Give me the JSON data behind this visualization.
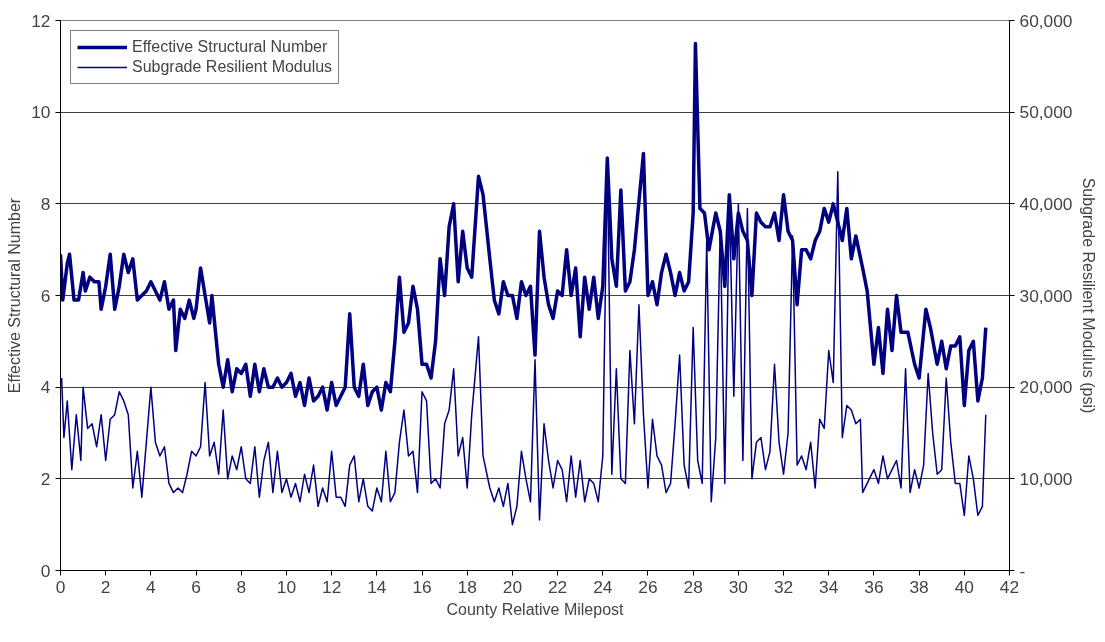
{
  "chart_data": {
    "type": "line",
    "xlabel": "County Relative Milepost",
    "ylabel": "Effective Structural Number",
    "y2label": "Subgrade Resilient Modulus (psi)",
    "xlim": [
      0,
      42
    ],
    "xticks": [
      0,
      2,
      4,
      6,
      8,
      10,
      12,
      14,
      16,
      18,
      20,
      22,
      24,
      26,
      28,
      30,
      32,
      34,
      36,
      38,
      40,
      42
    ],
    "ylim": [
      0,
      12
    ],
    "yticks": [
      0,
      2,
      4,
      6,
      8,
      10,
      12
    ],
    "y2lim": [
      0,
      60000
    ],
    "y2ticks": [
      {
        "value": 0,
        "label": "-"
      },
      {
        "value": 10000,
        "label": "10,000"
      },
      {
        "value": 20000,
        "label": "20,000"
      },
      {
        "value": 30000,
        "label": "30,000"
      },
      {
        "value": 40000,
        "label": "40,000"
      },
      {
        "value": 50000,
        "label": "50,000"
      },
      {
        "value": 60000,
        "label": "60,000"
      }
    ],
    "grid": "y",
    "legend": "top left",
    "line_style": "solid",
    "series": [
      {
        "name": "Effective Structural Number",
        "color": "#000080",
        "x": [
          0,
          0.1,
          0.3,
          0.4,
          0.6,
          0.8,
          1.0,
          1.1,
          1.3,
          1.5,
          1.7,
          1.8,
          2.0,
          2.2,
          2.4,
          2.6,
          2.8,
          3.0,
          3.2,
          3.4,
          3.6,
          3.8,
          4.0,
          4.2,
          4.4,
          4.6,
          4.8,
          5.0,
          5.1,
          5.3,
          5.5,
          5.7,
          5.9,
          6.0,
          6.2,
          6.4,
          6.6,
          6.7,
          7.0,
          7.2,
          7.4,
          7.6,
          7.8,
          8.0,
          8.2,
          8.4,
          8.6,
          8.8,
          9.0,
          9.2,
          9.4,
          9.6,
          9.8,
          10.0,
          10.2,
          10.4,
          10.6,
          10.8,
          11.0,
          11.2,
          11.4,
          11.6,
          11.8,
          12.0,
          12.2,
          12.4,
          12.6,
          12.8,
          13.0,
          13.2,
          13.4,
          13.6,
          13.8,
          14.0,
          14.2,
          14.4,
          14.6,
          14.8,
          15.0,
          15.2,
          15.4,
          15.6,
          15.8,
          16.0,
          16.2,
          16.4,
          16.6,
          16.8,
          17.0,
          17.2,
          17.4,
          17.6,
          17.8,
          18.0,
          18.2,
          18.5,
          18.7,
          19.0,
          19.2,
          19.4,
          19.6,
          19.8,
          20.0,
          20.2,
          20.4,
          20.6,
          20.8,
          21.0,
          21.2,
          21.4,
          21.6,
          21.8,
          22.0,
          22.2,
          22.4,
          22.6,
          22.8,
          23.0,
          23.2,
          23.4,
          23.6,
          23.8,
          24.0,
          24.2,
          24.4,
          24.6,
          24.8,
          25.0,
          25.2,
          25.4,
          25.8,
          26.0,
          26.2,
          26.4,
          26.6,
          26.8,
          27.0,
          27.2,
          27.4,
          27.6,
          27.8,
          28.0,
          28.1,
          28.3,
          28.5,
          28.7,
          29.0,
          29.2,
          29.4,
          29.6,
          29.8,
          30.0,
          30.2,
          30.4,
          30.6,
          30.8,
          31.0,
          31.2,
          31.4,
          31.6,
          31.8,
          32.0,
          32.2,
          32.4,
          32.6,
          32.8,
          33.0,
          33.2,
          33.4,
          33.6,
          33.8,
          34.0,
          34.2,
          34.4,
          34.6,
          34.8,
          35.0,
          35.2,
          35.5,
          35.7,
          36.0,
          36.2,
          36.4,
          36.6,
          36.8,
          37.0,
          37.2,
          37.5,
          37.8,
          38.0,
          38.3,
          38.5,
          38.8,
          39.0,
          39.2,
          39.4,
          39.6,
          39.8,
          40.0,
          40.2,
          40.4,
          40.6,
          40.8,
          40.95
        ],
        "values": [
          6.9,
          5.9,
          6.7,
          6.9,
          5.9,
          5.9,
          6.5,
          6.1,
          6.4,
          6.3,
          6.3,
          5.7,
          6.2,
          6.9,
          5.7,
          6.2,
          6.9,
          6.5,
          6.8,
          5.9,
          6.0,
          6.1,
          6.3,
          6.1,
          5.9,
          6.3,
          5.7,
          5.9,
          4.8,
          5.7,
          5.5,
          5.9,
          5.5,
          5.7,
          6.6,
          6.0,
          5.4,
          6.0,
          4.5,
          4.0,
          4.6,
          3.9,
          4.4,
          4.3,
          4.5,
          3.8,
          4.5,
          3.9,
          4.4,
          4.0,
          4.0,
          4.2,
          4.0,
          4.1,
          4.3,
          3.8,
          4.1,
          3.6,
          4.2,
          3.7,
          3.8,
          4.0,
          3.5,
          4.1,
          3.6,
          3.8,
          4.0,
          5.6,
          4.0,
          3.8,
          4.5,
          3.6,
          3.9,
          4.0,
          3.5,
          4.1,
          3.9,
          5.0,
          6.4,
          5.2,
          5.4,
          6.2,
          5.7,
          4.5,
          4.5,
          4.2,
          5.0,
          6.8,
          6.0,
          7.5,
          8.0,
          6.3,
          7.4,
          6.6,
          6.4,
          8.6,
          8.2,
          6.8,
          5.9,
          5.6,
          6.3,
          6.0,
          6.0,
          5.5,
          6.3,
          6.0,
          6.2,
          4.7,
          7.4,
          6.4,
          5.8,
          5.5,
          6.1,
          6.0,
          7.0,
          6.0,
          6.6,
          5.1,
          6.4,
          5.7,
          6.4,
          5.5,
          6.2,
          9.0,
          6.8,
          6.2,
          8.3,
          6.1,
          6.3,
          7.0,
          9.1,
          6.0,
          6.3,
          5.8,
          6.5,
          6.9,
          6.5,
          6.0,
          6.5,
          6.1,
          6.3,
          7.8,
          11.5,
          7.9,
          7.8,
          7.0,
          7.8,
          7.4,
          6.2,
          8.2,
          6.8,
          7.8,
          7.4,
          7.2,
          6.0,
          7.8,
          7.6,
          7.5,
          7.5,
          7.8,
          7.2,
          8.2,
          7.4,
          7.2,
          5.8,
          7.0,
          7.0,
          6.8,
          7.2,
          7.4,
          7.9,
          7.6,
          8.0,
          7.6,
          7.2,
          7.9,
          6.8,
          7.3,
          6.6,
          6.1,
          4.5,
          5.3,
          4.3,
          5.7,
          4.8,
          6.0,
          5.2,
          5.2,
          4.5,
          4.2,
          5.7,
          5.3,
          4.5,
          5.0,
          4.4,
          4.9,
          4.9,
          5.1,
          3.6,
          4.8,
          5.0,
          3.7,
          4.2,
          5.3
        ]
      },
      {
        "name": "Subgrade Resilient Modulus",
        "color": "#000080",
        "axis": "y2",
        "x": [
          0.05,
          0.15,
          0.3,
          0.5,
          0.7,
          0.9,
          1.0,
          1.2,
          1.4,
          1.6,
          1.8,
          2.0,
          2.2,
          2.4,
          2.6,
          2.8,
          3.0,
          3.2,
          3.4,
          3.6,
          3.8,
          4.0,
          4.2,
          4.4,
          4.6,
          4.8,
          5.0,
          5.2,
          5.4,
          5.6,
          5.8,
          6.0,
          6.2,
          6.4,
          6.6,
          6.8,
          7.0,
          7.2,
          7.4,
          7.6,
          7.8,
          8.0,
          8.2,
          8.4,
          8.6,
          8.8,
          9.0,
          9.2,
          9.4,
          9.6,
          9.8,
          10.0,
          10.2,
          10.4,
          10.6,
          10.8,
          11.0,
          11.2,
          11.4,
          11.6,
          11.8,
          12.0,
          12.2,
          12.4,
          12.6,
          12.8,
          13.0,
          13.2,
          13.4,
          13.6,
          13.8,
          14.0,
          14.2,
          14.4,
          14.6,
          14.8,
          15.0,
          15.2,
          15.4,
          15.6,
          15.8,
          16.0,
          16.2,
          16.4,
          16.6,
          16.8,
          17.0,
          17.2,
          17.4,
          17.6,
          17.8,
          18.0,
          18.2,
          18.5,
          18.7,
          19.0,
          19.2,
          19.4,
          19.6,
          19.8,
          20.0,
          20.2,
          20.4,
          20.6,
          20.8,
          21.0,
          21.2,
          21.4,
          21.6,
          21.8,
          22.0,
          22.2,
          22.4,
          22.6,
          22.8,
          23.0,
          23.2,
          23.4,
          23.6,
          23.8,
          24.0,
          24.2,
          24.4,
          24.6,
          24.8,
          25.0,
          25.2,
          25.4,
          25.6,
          25.8,
          26.0,
          26.2,
          26.4,
          26.6,
          26.8,
          27.0,
          27.2,
          27.4,
          27.6,
          27.8,
          28.0,
          28.2,
          28.4,
          28.6,
          28.8,
          29.0,
          29.2,
          29.4,
          29.6,
          29.8,
          30.0,
          30.2,
          30.4,
          30.6,
          30.8,
          31.0,
          31.2,
          31.4,
          31.6,
          31.8,
          32.0,
          32.2,
          32.4,
          32.6,
          32.8,
          33.0,
          33.2,
          33.4,
          33.6,
          33.8,
          34.0,
          34.2,
          34.4,
          34.6,
          34.8,
          35.0,
          35.2,
          35.4,
          35.5,
          35.7,
          36.0,
          36.2,
          36.4,
          36.6,
          36.8,
          37.0,
          37.2,
          37.4,
          37.6,
          37.8,
          38.0,
          38.2,
          38.4,
          38.6,
          38.8,
          39.0,
          39.2,
          39.4,
          39.6,
          39.8,
          40.0,
          40.2,
          40.4,
          40.6,
          40.8,
          40.95
        ],
        "values": [
          21000,
          14500,
          18500,
          11000,
          17000,
          12000,
          20000,
          15500,
          16000,
          13500,
          17000,
          12000,
          16500,
          17000,
          19500,
          18500,
          17000,
          9000,
          13000,
          8000,
          14000,
          20000,
          14000,
          12500,
          13500,
          9500,
          8500,
          9000,
          8500,
          10500,
          13000,
          12500,
          13500,
          20500,
          12500,
          14000,
          10500,
          17500,
          10000,
          12500,
          11000,
          13500,
          10000,
          9500,
          13500,
          8000,
          12000,
          14000,
          8500,
          13000,
          8500,
          10000,
          8000,
          9500,
          7500,
          10500,
          8500,
          11500,
          7000,
          9000,
          7500,
          13000,
          8000,
          8000,
          7000,
          11500,
          12500,
          7500,
          10000,
          7000,
          6500,
          9000,
          7500,
          13000,
          7500,
          8500,
          14000,
          17500,
          12500,
          13000,
          8500,
          19500,
          18500,
          9500,
          10000,
          9000,
          16000,
          17500,
          22000,
          12500,
          14500,
          9000,
          17000,
          25500,
          12500,
          9000,
          7500,
          9000,
          7000,
          9500,
          5000,
          7000,
          13000,
          10000,
          7500,
          23000,
          5500,
          16000,
          12000,
          9000,
          12000,
          11000,
          7500,
          12500,
          8000,
          12000,
          7500,
          10000,
          9500,
          7500,
          12500,
          44500,
          10500,
          22000,
          10000,
          9500,
          24000,
          16000,
          29000,
          17000,
          9000,
          16500,
          12500,
          11500,
          8500,
          9500,
          16000,
          23500,
          11500,
          9000,
          26500,
          12000,
          9500,
          36000,
          7500,
          14500,
          37500,
          9500,
          40500,
          19000,
          40000,
          12000,
          39500,
          10000,
          14000,
          14500,
          11000,
          13000,
          22500,
          14000,
          10500,
          15000,
          36500,
          11500,
          12500,
          11000,
          14000,
          9000,
          16500,
          15500,
          24000,
          20500,
          43500,
          14500,
          18000,
          17500,
          16000,
          16500,
          8500,
          9500,
          11000,
          9500,
          12500,
          10000,
          11000,
          12000,
          9000,
          22000,
          8500,
          11000,
          9000,
          11500,
          21500,
          15000,
          10500,
          11000,
          21000,
          14000,
          9500,
          9500,
          6000,
          12500,
          10000,
          6000,
          7000,
          17000
        ]
      }
    ]
  }
}
